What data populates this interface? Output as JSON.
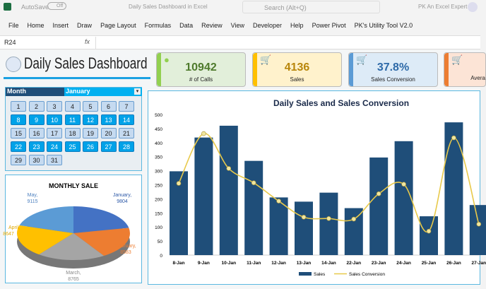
{
  "titlebar": {
    "autosave": "AutoSave",
    "toggle": "Off",
    "doc_title": "Daily Sales Dashboard in Excel",
    "search_placeholder": "Search (Alt+Q)",
    "user": "PK An Excel Expert"
  },
  "ribbon": [
    "File",
    "Home",
    "Insert",
    "Draw",
    "Page Layout",
    "Formulas",
    "Data",
    "Review",
    "View",
    "Developer",
    "Help",
    "Power Pivot",
    "PK's Utility Tool V2.0"
  ],
  "formula_bar": {
    "cell_ref": "R24",
    "fx": "fx",
    "value": ""
  },
  "dashboard": {
    "title": "Daily Sales Dashboard",
    "kpis": [
      {
        "value": "10942",
        "label": "# of Calls",
        "color": "#92d050",
        "bg": "#e2efda",
        "text": "#4e7a2c",
        "icon": "headset-person-icon"
      },
      {
        "value": "4136",
        "label": "Sales",
        "color": "#ffc000",
        "bg": "#fff2cc",
        "text": "#b8860b",
        "icon": "shopping-cart-icon"
      },
      {
        "value": "37.8%",
        "label": "Sales Conversion",
        "color": "#5b9bd5",
        "bg": "#ddebf7",
        "text": "#2e6aa8",
        "icon": "shopping-cart-icon"
      },
      {
        "value": "",
        "label": "Avera",
        "color": "#ed7d31",
        "bg": "#fce4d6",
        "text": "#c55a11",
        "icon": "shopping-cart-icon"
      }
    ],
    "slicer": {
      "header": "Month",
      "selected": "January",
      "days": [
        "1",
        "2",
        "3",
        "4",
        "5",
        "6",
        "7",
        "8",
        "9",
        "10",
        "11",
        "12",
        "13",
        "14",
        "15",
        "16",
        "17",
        "18",
        "19",
        "20",
        "21",
        "22",
        "23",
        "24",
        "25",
        "26",
        "27",
        "28",
        "29",
        "30",
        "31"
      ],
      "selected_days": [
        8,
        9,
        10,
        11,
        12,
        13,
        14,
        22,
        23,
        24,
        25,
        26,
        27,
        28
      ]
    }
  },
  "chart_data": [
    {
      "type": "pie",
      "title": "MONTHLY SALE",
      "slices": [
        {
          "label": "January",
          "value": 9804,
          "color": "#4472c4"
        },
        {
          "label": "February",
          "value": 8583,
          "color": "#ed7d31"
        },
        {
          "label": "March",
          "value": 8765,
          "color": "#a5a5a5"
        },
        {
          "label": "April",
          "value": 8647,
          "color": "#ffc000"
        },
        {
          "label": "May",
          "value": 9115,
          "color": "#5b9bd5"
        }
      ]
    },
    {
      "type": "bar",
      "title": "Daily Sales and Sales Conversion",
      "categories": [
        "8-Jan",
        "9-Jan",
        "10-Jan",
        "11-Jan",
        "12-Jan",
        "13-Jan",
        "14-Jan",
        "22-Jan",
        "23-Jan",
        "24-Jan",
        "25-Jan",
        "26-Jan",
        "27-Jan"
      ],
      "ylim": [
        0,
        500
      ],
      "yticks": [
        "0",
        "50",
        "100",
        "150",
        "200",
        "250",
        "300",
        "350",
        "400",
        "450",
        "500"
      ],
      "legend": "bottom",
      "series": [
        {
          "name": "Sales",
          "type": "bar",
          "color": "#1f4e79",
          "values": [
            298,
            418,
            460,
            335,
            205,
            190,
            222,
            167,
            347,
            405,
            138,
            472,
            178
          ]
        },
        {
          "name": "Sales Conversion",
          "type": "line",
          "color": "#e8c94a",
          "values": [
            255,
            432,
            308,
            257,
            192,
            135,
            130,
            128,
            218,
            252,
            85,
            417,
            110
          ]
        }
      ]
    }
  ]
}
